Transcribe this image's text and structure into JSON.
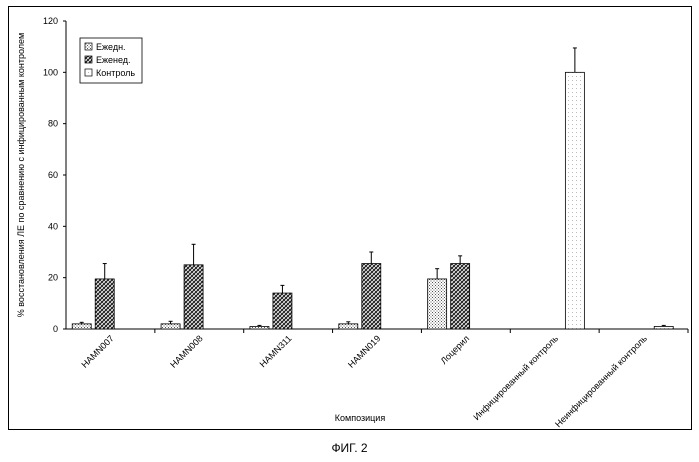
{
  "figure": {
    "caption": "ФИГ. 2"
  },
  "chart_data": {
    "type": "bar",
    "title": "",
    "xlabel": "Композиция",
    "ylabel": "% восстановления ЛЕ по сравнению с инфицированным контролем",
    "ylim": [
      0,
      120
    ],
    "yticks": [
      "0",
      "20",
      "40",
      "60",
      "80",
      "100",
      "120"
    ],
    "legend": "top-left",
    "categories": [
      "HAMN007",
      "HAMN008",
      "HAMN311",
      "HAMN019",
      "Лоцерил",
      "Инфицированный контроль",
      "Неинфицированный контроль"
    ],
    "series": [
      {
        "name": "Ежедн.",
        "pattern": "dots",
        "values": [
          2,
          2,
          1,
          2,
          19.5,
          null,
          null
        ],
        "errors": [
          0.6,
          1,
          0.4,
          0.8,
          4,
          null,
          null
        ]
      },
      {
        "name": "Еженед.",
        "pattern": "hatch",
        "values": [
          19.5,
          25,
          14,
          25.5,
          25.5,
          null,
          null
        ],
        "errors": [
          6,
          8,
          3,
          4.5,
          3,
          null,
          null
        ]
      },
      {
        "name": "Контроль",
        "pattern": "light",
        "values": [
          null,
          null,
          null,
          null,
          null,
          100,
          1
        ],
        "errors": [
          null,
          null,
          null,
          null,
          null,
          9.5,
          0.4
        ]
      }
    ]
  }
}
